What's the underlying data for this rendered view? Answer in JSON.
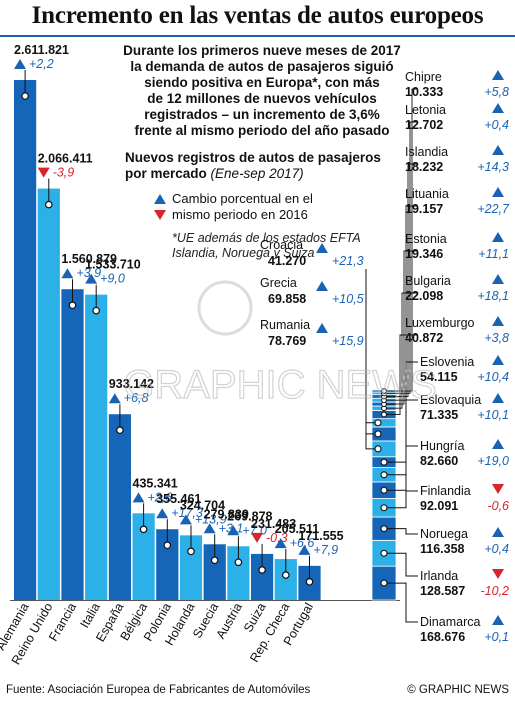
{
  "header": {
    "title": "Incremento en las ventas de autos europeos",
    "intro": [
      "Durante los primeros nueve meses de 2017",
      "la demanda de autos de pasajeros siguió",
      "siendo positiva en Europa*, con más",
      "de 12 millones de nuevos vehículos",
      "registrados – un incremento de 3,6%",
      "frente al mismo periodo del año pasado"
    ],
    "subhead": [
      "Nuevos registros de autos de pasajeros",
      "por mercado"
    ],
    "period": "(Ene-sep 2017)"
  },
  "legend": {
    "lines": [
      "Cambio porcentual en el",
      "mismo periodo en 2016"
    ],
    "footnote": [
      "*UE además de los estados EFTA",
      "Islandia, Noruega y Suiza"
    ]
  },
  "footer": {
    "source": "Fuente: Asociación Europea de Fabricantes de Automóviles",
    "credit": "© GRAPHIC NEWS"
  },
  "watermark": "GRAPHIC NEWS",
  "colors": {
    "dark_blue": "#1565b8",
    "light_blue": "#2bb0e8",
    "up": "#1a63b4",
    "down": "#d8242c",
    "change_text": "#1a63b4",
    "down_text": "#d8242c"
  },
  "chart_data": {
    "type": "bar",
    "title": "Nuevos registros de autos de pasajeros por mercado (Ene-sep 2017)",
    "unit": "registros",
    "categories": [
      "Alemania",
      "Reino Unido",
      "Francia",
      "Italia",
      "España",
      "Bélgica",
      "Polonia",
      "Holanda",
      "Suecia",
      "Austria",
      "Suiza",
      "Rep. Checa",
      "Portugal"
    ],
    "series": [
      {
        "name": "Nuevos registros",
        "values": [
          2611821,
          2066411,
          1560879,
          1533710,
          933142,
          435341,
          355461,
          324704,
          279839,
          269878,
          231483,
          205511,
          171555
        ]
      },
      {
        "name": "Cambio porcentual en el mismo periodo en 2016",
        "values": [
          2.2,
          -3.9,
          3.9,
          9.0,
          6.8,
          2.6,
          17.3,
          13.9,
          3.1,
          7.0,
          -0.3,
          6.6,
          7.9
        ]
      }
    ],
    "value_labels": [
      "2.611.821",
      "2.066.411",
      "1.560.879",
      "1.533.710",
      "933.142",
      "435.341",
      "355.461",
      "324.704",
      "279.839",
      "269.878",
      "231.483",
      "205.511",
      "171.555"
    ],
    "change_labels": [
      "+2,2",
      "-3,9",
      "+3,9",
      "+9,0",
      "+6,8",
      "+2,6",
      "+17,3",
      "+13,9",
      "+3,1",
      "+7,0",
      "-0,3",
      "+6,6",
      "+7,9"
    ],
    "stacked_bar": {
      "segments": [
        {
          "name": "Dinamarca",
          "value": 168676,
          "value_label": "168.676",
          "change": 0.1,
          "change_label": "+0,1"
        },
        {
          "name": "Irlanda",
          "value": 128587,
          "value_label": "128.587",
          "change": -10.2,
          "change_label": "-10,2"
        },
        {
          "name": "Noruega",
          "value": 116358,
          "value_label": "116.358",
          "change": 0.4,
          "change_label": "+0,4"
        },
        {
          "name": "Finlandia",
          "value": 92091,
          "value_label": "92.091",
          "change": -0.6,
          "change_label": "-0,6"
        },
        {
          "name": "Hungría",
          "value": 82660,
          "value_label": "82.660",
          "change": 19.0,
          "change_label": "+19,0"
        },
        {
          "name": "Eslovaquia",
          "value": 71335,
          "value_label": "71.335",
          "change": 10.1,
          "change_label": "+10,1"
        },
        {
          "name": "Eslovenia",
          "value": 54115,
          "value_label": "54.115",
          "change": 10.4,
          "change_label": "+10,4"
        },
        {
          "name": "Rumania",
          "value": 78769,
          "value_label": "78.769",
          "change": 15.9,
          "change_label": "+15,9"
        },
        {
          "name": "Grecia",
          "value": 69858,
          "value_label": "69.858",
          "change": 10.5,
          "change_label": "+10,5"
        },
        {
          "name": "Croacia",
          "value": 41270,
          "value_label": "41.270",
          "change": 21.3,
          "change_label": "+21,3"
        },
        {
          "name": "Luxemburgo",
          "value": 40872,
          "value_label": "40.872",
          "change": 3.8,
          "change_label": "+3,8"
        },
        {
          "name": "Bulgaria",
          "value": 22098,
          "value_label": "22.098",
          "change": 18.1,
          "change_label": "+18,1"
        },
        {
          "name": "Estonia",
          "value": 19346,
          "value_label": "19.346",
          "change": 11.1,
          "change_label": "+11,1"
        },
        {
          "name": "Lituania",
          "value": 19157,
          "value_label": "19.157",
          "change": 22.7,
          "change_label": "+22,7"
        },
        {
          "name": "Islandia",
          "value": 18232,
          "value_label": "18.232",
          "change": 14.3,
          "change_label": "+14,3"
        },
        {
          "name": "Letonia",
          "value": 12702,
          "value_label": "12.702",
          "change": 0.4,
          "change_label": "+0,4"
        },
        {
          "name": "Chipre",
          "value": 10333,
          "value_label": "10.333",
          "change": 5.8,
          "change_label": "+5,8"
        }
      ]
    }
  }
}
